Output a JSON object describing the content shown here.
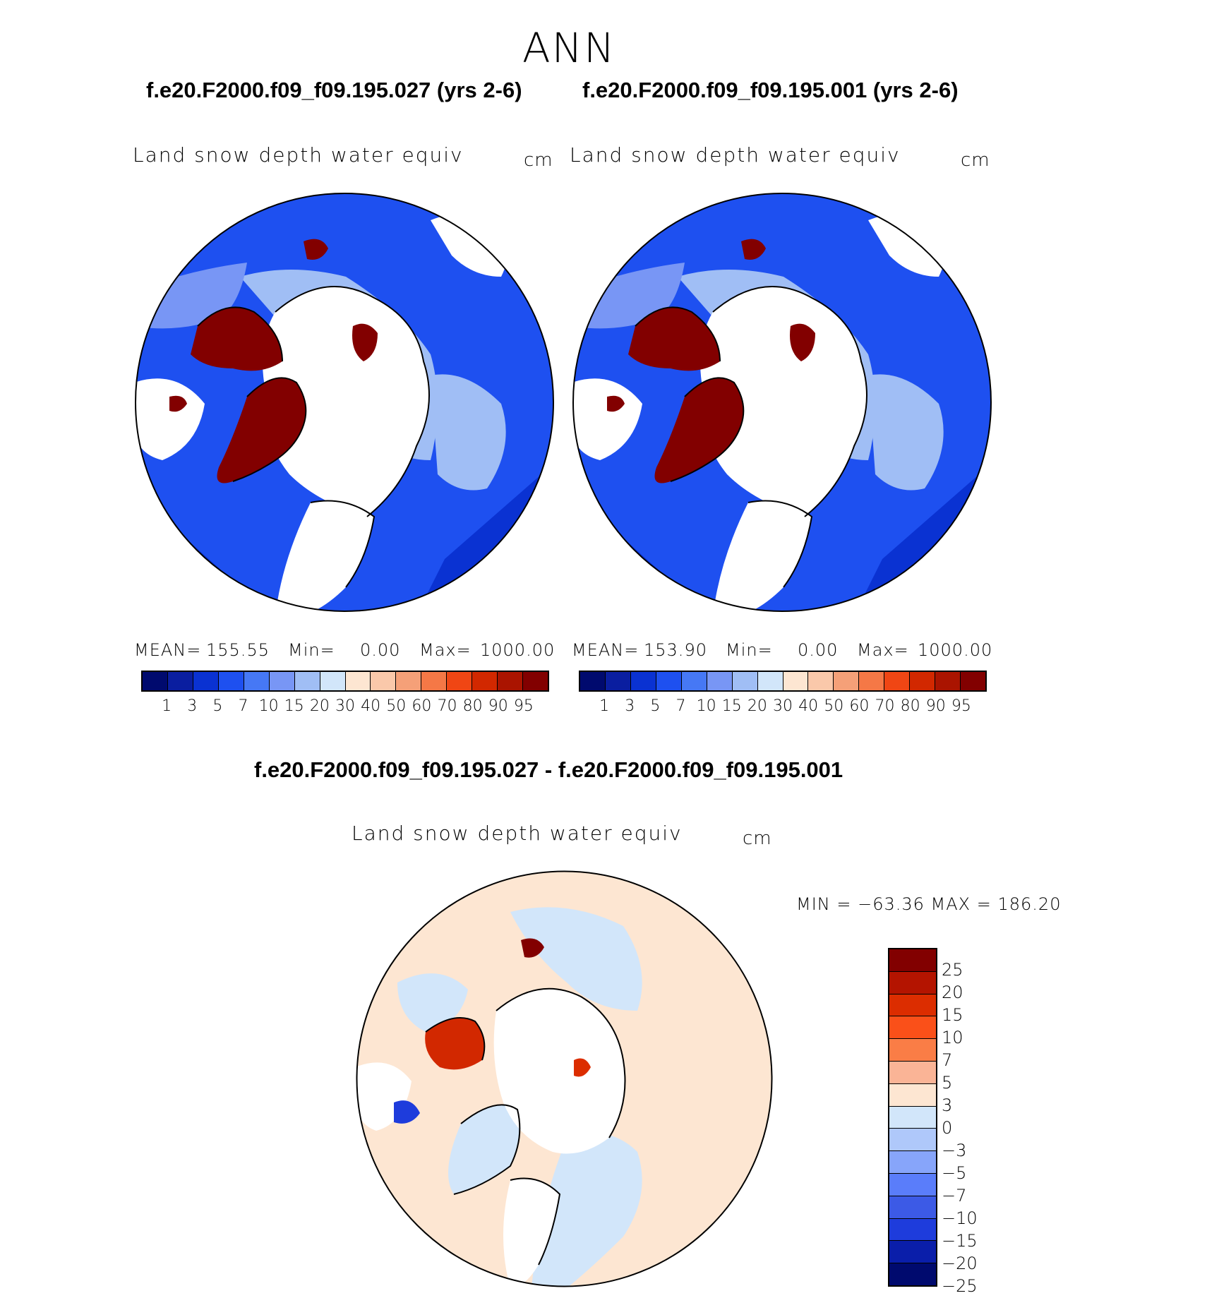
{
  "header": {
    "season": "ANN",
    "case1_title": "f.e20.F2000.f09_f09.195.027 (yrs 2-6)",
    "case2_title": "f.e20.F2000.f09_f09.195.001 (yrs 2-6)",
    "diff_title": "f.e20.F2000.f09_f09.195.027 - f.e20.F2000.f09_f09.195.001"
  },
  "panels": {
    "left": {
      "variable": "Land snow depth water equiv",
      "units": "cm",
      "mean_label": "MEAN=",
      "mean_value": "155.55",
      "min_label": "Min=",
      "min_value": "0.00",
      "max_label": "Max=",
      "max_value": "1000.00"
    },
    "right": {
      "variable": "Land snow depth water equiv",
      "units": "cm",
      "mean_label": "MEAN=",
      "mean_value": "153.90",
      "min_label": "Min=",
      "min_value": "0.00",
      "max_label": "Max=",
      "max_value": "1000.00"
    },
    "diff": {
      "variable": "Land snow depth water equiv",
      "units": "cm",
      "minmax": "MIN = −63.36 MAX = 186.20"
    }
  },
  "colorbar_abs": {
    "ticks": [
      "1",
      "3",
      "5",
      "7",
      "10",
      "15",
      "20",
      "30",
      "40",
      "50",
      "60",
      "70",
      "80",
      "90",
      "95"
    ],
    "colors": [
      "#000a6e",
      "#0a1ea0",
      "#0a32d2",
      "#1e50f0",
      "#4678f5",
      "#7896f5",
      "#a0bef5",
      "#d2e6fa",
      "#fde6d2",
      "#fac8aa",
      "#f5a078",
      "#f57846",
      "#f04614",
      "#d22800",
      "#aa1400",
      "#820000"
    ]
  },
  "colorbar_diff": {
    "ticks": [
      "25",
      "20",
      "15",
      "10",
      "7",
      "5",
      "3",
      "0",
      "−3",
      "−5",
      "−7",
      "−10",
      "−15",
      "−20",
      "−25"
    ],
    "colors": [
      "#820000",
      "#b41400",
      "#dc2d00",
      "#fa5019",
      "#fa7d46",
      "#fab496",
      "#fde6d2",
      "#d2e6fa",
      "#afc8fa",
      "#87a5fa",
      "#5a7dfa",
      "#3c5ae6",
      "#1e3cdc",
      "#0a1eaa",
      "#000a6e"
    ]
  }
}
